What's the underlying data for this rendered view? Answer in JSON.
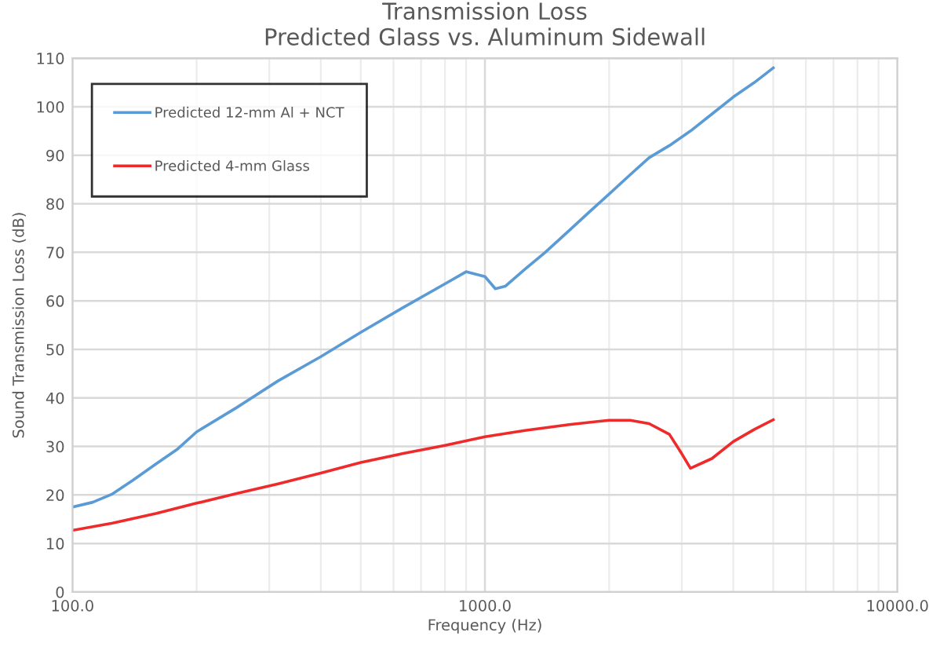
{
  "chart_data": {
    "type": "line",
    "title": "Transmission Loss\nPredicted Glass vs. Aluminum Sidewall",
    "xlabel": "Frequency (Hz)",
    "ylabel": "Sound Transmission Loss (dB)",
    "log": "x",
    "xlim": [
      100,
      10000
    ],
    "xticks": [
      {
        "value": 100,
        "label": "100.0"
      },
      {
        "value": 1000,
        "label": "1000.0"
      },
      {
        "value": 10000,
        "label": "10000.0"
      }
    ],
    "ylim": [
      0,
      110
    ],
    "yticks": [
      0,
      10,
      20,
      30,
      40,
      50,
      60,
      70,
      80,
      90,
      100,
      110
    ],
    "grid": true,
    "legend": "top left",
    "marker": "none",
    "line_style": "solid",
    "series": [
      {
        "name": "Predicted 12-mm Al + NCT",
        "color": "#5b9bd5",
        "x": [
          100,
          112,
          125,
          140,
          160,
          180,
          200,
          250,
          315,
          400,
          500,
          630,
          800,
          900,
          1000,
          1060,
          1120,
          1250,
          1400,
          1600,
          1800,
          2000,
          2250,
          2500,
          2800,
          3150,
          3550,
          4000,
          4500,
          5000
        ],
        "values": [
          17.5,
          18.5,
          20.2,
          23,
          26.5,
          29.5,
          33,
          38,
          43.5,
          48.5,
          53.5,
          58.5,
          63.5,
          66,
          65,
          62.5,
          63,
          66.5,
          70,
          74.5,
          78.5,
          82,
          86,
          89.5,
          92,
          95,
          98.5,
          102,
          105,
          108
        ]
      },
      {
        "name": "Predicted 4-mm Glass",
        "color": "#ee2a2a",
        "x": [
          100,
          125,
          160,
          200,
          250,
          315,
          400,
          500,
          630,
          800,
          1000,
          1250,
          1600,
          2000,
          2250,
          2500,
          2800,
          3000,
          3150,
          3550,
          4000,
          4500,
          5000
        ],
        "values": [
          12.7,
          14.2,
          16.2,
          18.3,
          20.3,
          22.3,
          24.5,
          26.7,
          28.5,
          30.2,
          32,
          33.3,
          34.5,
          35.4,
          35.4,
          34.7,
          32.5,
          28.5,
          25.5,
          27.5,
          31,
          33.5,
          35.5
        ]
      }
    ]
  }
}
